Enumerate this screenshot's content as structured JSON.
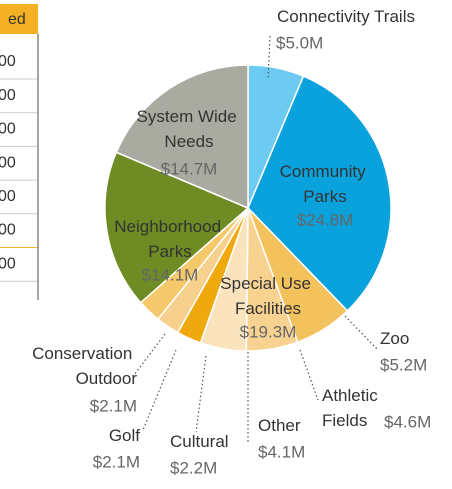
{
  "table": {
    "header": "ed",
    "rows": [
      "00",
      "00",
      "00",
      "00",
      "00",
      "00",
      "00"
    ]
  },
  "chart_data": {
    "type": "pie",
    "categories": [
      "Connectivity Trails",
      "Community Parks",
      "Zoo",
      "Athletic Fields",
      "Other",
      "Cultural",
      "Golf",
      "Conservation Outdoor",
      "Neighborhood Parks",
      "System Wide Needs"
    ],
    "values": [
      5.0,
      24.8,
      5.2,
      4.6,
      4.1,
      2.2,
      2.1,
      2.1,
      14.1,
      14.7
    ],
    "value_labels": [
      "$5.0M",
      "$24.8M",
      "$5.2M",
      "$4.6M",
      "$4.1M",
      "$2.2M",
      "$2.1M",
      "$2.1M",
      "$14.1M",
      "$14.7M"
    ],
    "colors": [
      "#6dcbf1",
      "#0aa2dd",
      "#f4c25c",
      "#f8d291",
      "#fbe4bd",
      "#f0a90c",
      "#f7d08e",
      "#f6c86c",
      "#6e8c23",
      "#a9aba1"
    ],
    "annotations": [
      {
        "text": "Special Use Facilities",
        "value": 19.3,
        "value_label": "$19.3M"
      }
    ]
  }
}
